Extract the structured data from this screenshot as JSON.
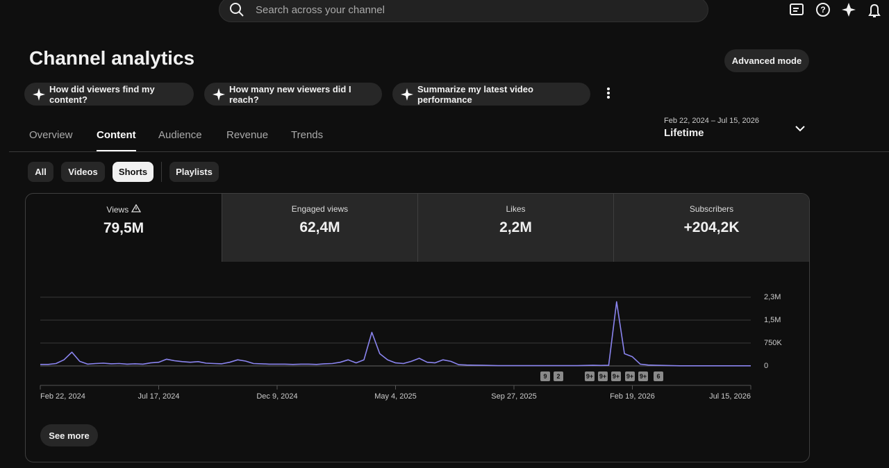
{
  "header": {
    "search_placeholder": "Search across your channel",
    "title": "Channel analytics",
    "advanced_mode": "Advanced mode"
  },
  "suggestions": [
    "How did viewers find my content?",
    "How many new viewers did I reach?",
    "Summarize my latest video performance"
  ],
  "tabs": [
    "Overview",
    "Content",
    "Audience",
    "Revenue",
    "Trends"
  ],
  "date_range": {
    "range": "Feb 22, 2024 – Jul 15, 2026",
    "label": "Lifetime"
  },
  "filters": [
    "All",
    "Videos",
    "Shorts",
    "Playlists"
  ],
  "metrics": [
    {
      "label": "Views",
      "value": "79,5M"
    },
    {
      "label": "Engaged views",
      "value": "62,4M"
    },
    {
      "label": "Likes",
      "value": "2,2M"
    },
    {
      "label": "Subscribers",
      "value": "+204,2K"
    }
  ],
  "video_markers": [
    "9",
    "2",
    "9+",
    "9+",
    "9+",
    "9+",
    "9+",
    "6"
  ],
  "see_more": "See more",
  "chart_data": {
    "type": "line",
    "color": "#8b85f0",
    "grid": true,
    "categories": [
      "Feb 22, 2024",
      null,
      null,
      null,
      null,
      null,
      null,
      null,
      null,
      null,
      null,
      null,
      null,
      null,
      null,
      "Jul 17, 2024",
      null,
      null,
      null,
      null,
      null,
      null,
      null,
      null,
      null,
      null,
      null,
      null,
      null,
      null,
      "Dec 9, 2024",
      null,
      null,
      null,
      null,
      null,
      null,
      null,
      null,
      null,
      null,
      null,
      null,
      null,
      null,
      "May 4, 2025",
      null,
      null,
      null,
      null,
      null,
      null,
      null,
      null,
      null,
      null,
      null,
      null,
      null,
      null,
      "Sep 27, 2025",
      null,
      null,
      null,
      null,
      null,
      null,
      null,
      null,
      null,
      null,
      null,
      null,
      null,
      null,
      "Feb 19, 2026",
      null,
      null,
      null,
      null,
      null,
      null,
      null,
      null,
      null,
      null,
      null,
      null,
      null,
      null,
      "Jul 15, 2026"
    ],
    "values": [
      50000,
      50000,
      80000,
      200000,
      450000,
      150000,
      60000,
      80000,
      90000,
      70000,
      80000,
      60000,
      70000,
      60000,
      100000,
      120000,
      220000,
      170000,
      140000,
      120000,
      140000,
      90000,
      80000,
      70000,
      120000,
      200000,
      160000,
      80000,
      70000,
      60000,
      60000,
      60000,
      50000,
      60000,
      60000,
      50000,
      70000,
      80000,
      120000,
      200000,
      100000,
      200000,
      1100000,
      400000,
      200000,
      100000,
      80000,
      150000,
      250000,
      120000,
      100000,
      200000,
      150000,
      40000,
      30000,
      25000,
      20000,
      15000,
      10000,
      10000,
      10000,
      10000,
      10000,
      10000,
      10000,
      10000,
      10000,
      10000,
      10000,
      15000,
      20000,
      15000,
      20000,
      2100000,
      400000,
      300000,
      60000,
      30000,
      20000,
      15000,
      10000,
      5000,
      5000,
      5000,
      5000,
      5000,
      5000,
      5000,
      5000,
      5000,
      5000
    ],
    "ylim": [
      0,
      2250000
    ],
    "yticks": [
      0,
      {
        "value": 750000,
        "label": "750K"
      },
      {
        "value": 1500000,
        "label": "1,5M"
      },
      {
        "value": 2250000,
        "label": "2,3M"
      }
    ]
  }
}
